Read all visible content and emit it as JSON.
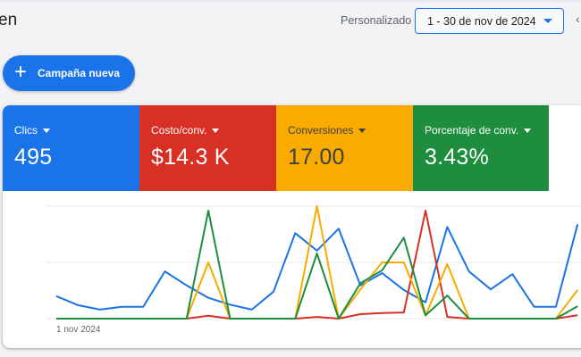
{
  "header": {
    "title_visible": "en",
    "date_range_label": "Personalizado",
    "date_range_value": "1 - 30 de nov de 2024",
    "prev_arrow": "‹"
  },
  "actions": {
    "new_campaign_icon": "+",
    "new_campaign_label": "Campaña nueva"
  },
  "metrics": [
    {
      "label": "Clics",
      "value": "495",
      "color": "#1a73e8"
    },
    {
      "label": "Costo/conv.",
      "value": "$14.3 K",
      "color": "#d93025"
    },
    {
      "label": "Conversiones",
      "value": "17.00",
      "color": "#f9ab00"
    },
    {
      "label": "Porcentaje de conv.",
      "value": "3.43%",
      "color": "#1e8e3e"
    }
  ],
  "chart": {
    "x_start_label": "1 nov 2024"
  },
  "chart_data": {
    "type": "line",
    "title": "",
    "xlabel": "",
    "ylabel": "",
    "x_tick_labels": [
      "1 nov 2024"
    ],
    "x": [
      1,
      2,
      3,
      4,
      5,
      6,
      7,
      8,
      9,
      10,
      11,
      12,
      13,
      14,
      15,
      16,
      17,
      18,
      19,
      20,
      21,
      22,
      23,
      24,
      25
    ],
    "y_units": "normalized (0 = baseline, 1 = middle gridline, 2 = top gridline); each series independently scaled, no y tick labels shown",
    "ylim": [
      0,
      2
    ],
    "grid": true,
    "gridlines": 3,
    "legend": "none (metric cards act as legend)",
    "series": [
      {
        "name": "Clics",
        "color": "#1a73e8",
        "values": [
          0.4,
          0.24,
          0.16,
          0.21,
          0.21,
          0.84,
          0.59,
          0.37,
          0.25,
          0.16,
          0.48,
          1.52,
          1.21,
          1.6,
          0.59,
          0.81,
          0.51,
          0.29,
          1.63,
          0.84,
          0.52,
          0.79,
          0.21,
          0.21,
          1.68
        ]
      },
      {
        "name": "Costo/conv.",
        "color": "#d93025",
        "values": [
          0,
          0,
          0,
          0,
          0,
          0,
          0,
          0.05,
          0,
          0,
          0,
          0,
          0.03,
          0,
          0.08,
          0.1,
          0.11,
          1.92,
          0.03,
          0,
          0,
          0,
          0,
          0,
          0.06
        ]
      },
      {
        "name": "Conversiones",
        "color": "#f9ab00",
        "values": [
          0,
          0,
          0,
          0,
          0,
          0,
          0,
          1.0,
          0,
          0,
          0,
          0,
          2.0,
          0,
          0.52,
          1.0,
          1.0,
          0.05,
          0.97,
          0,
          0,
          0,
          0,
          0,
          0.51
        ]
      },
      {
        "name": "Porcentaje de conv.",
        "color": "#1e8e3e",
        "values": [
          0,
          0,
          0,
          0,
          0,
          0,
          0,
          1.92,
          0,
          0,
          0,
          0,
          1.16,
          0,
          0.63,
          0.86,
          1.44,
          0.06,
          0.41,
          0,
          0,
          0,
          0,
          0,
          0.22
        ]
      }
    ]
  }
}
